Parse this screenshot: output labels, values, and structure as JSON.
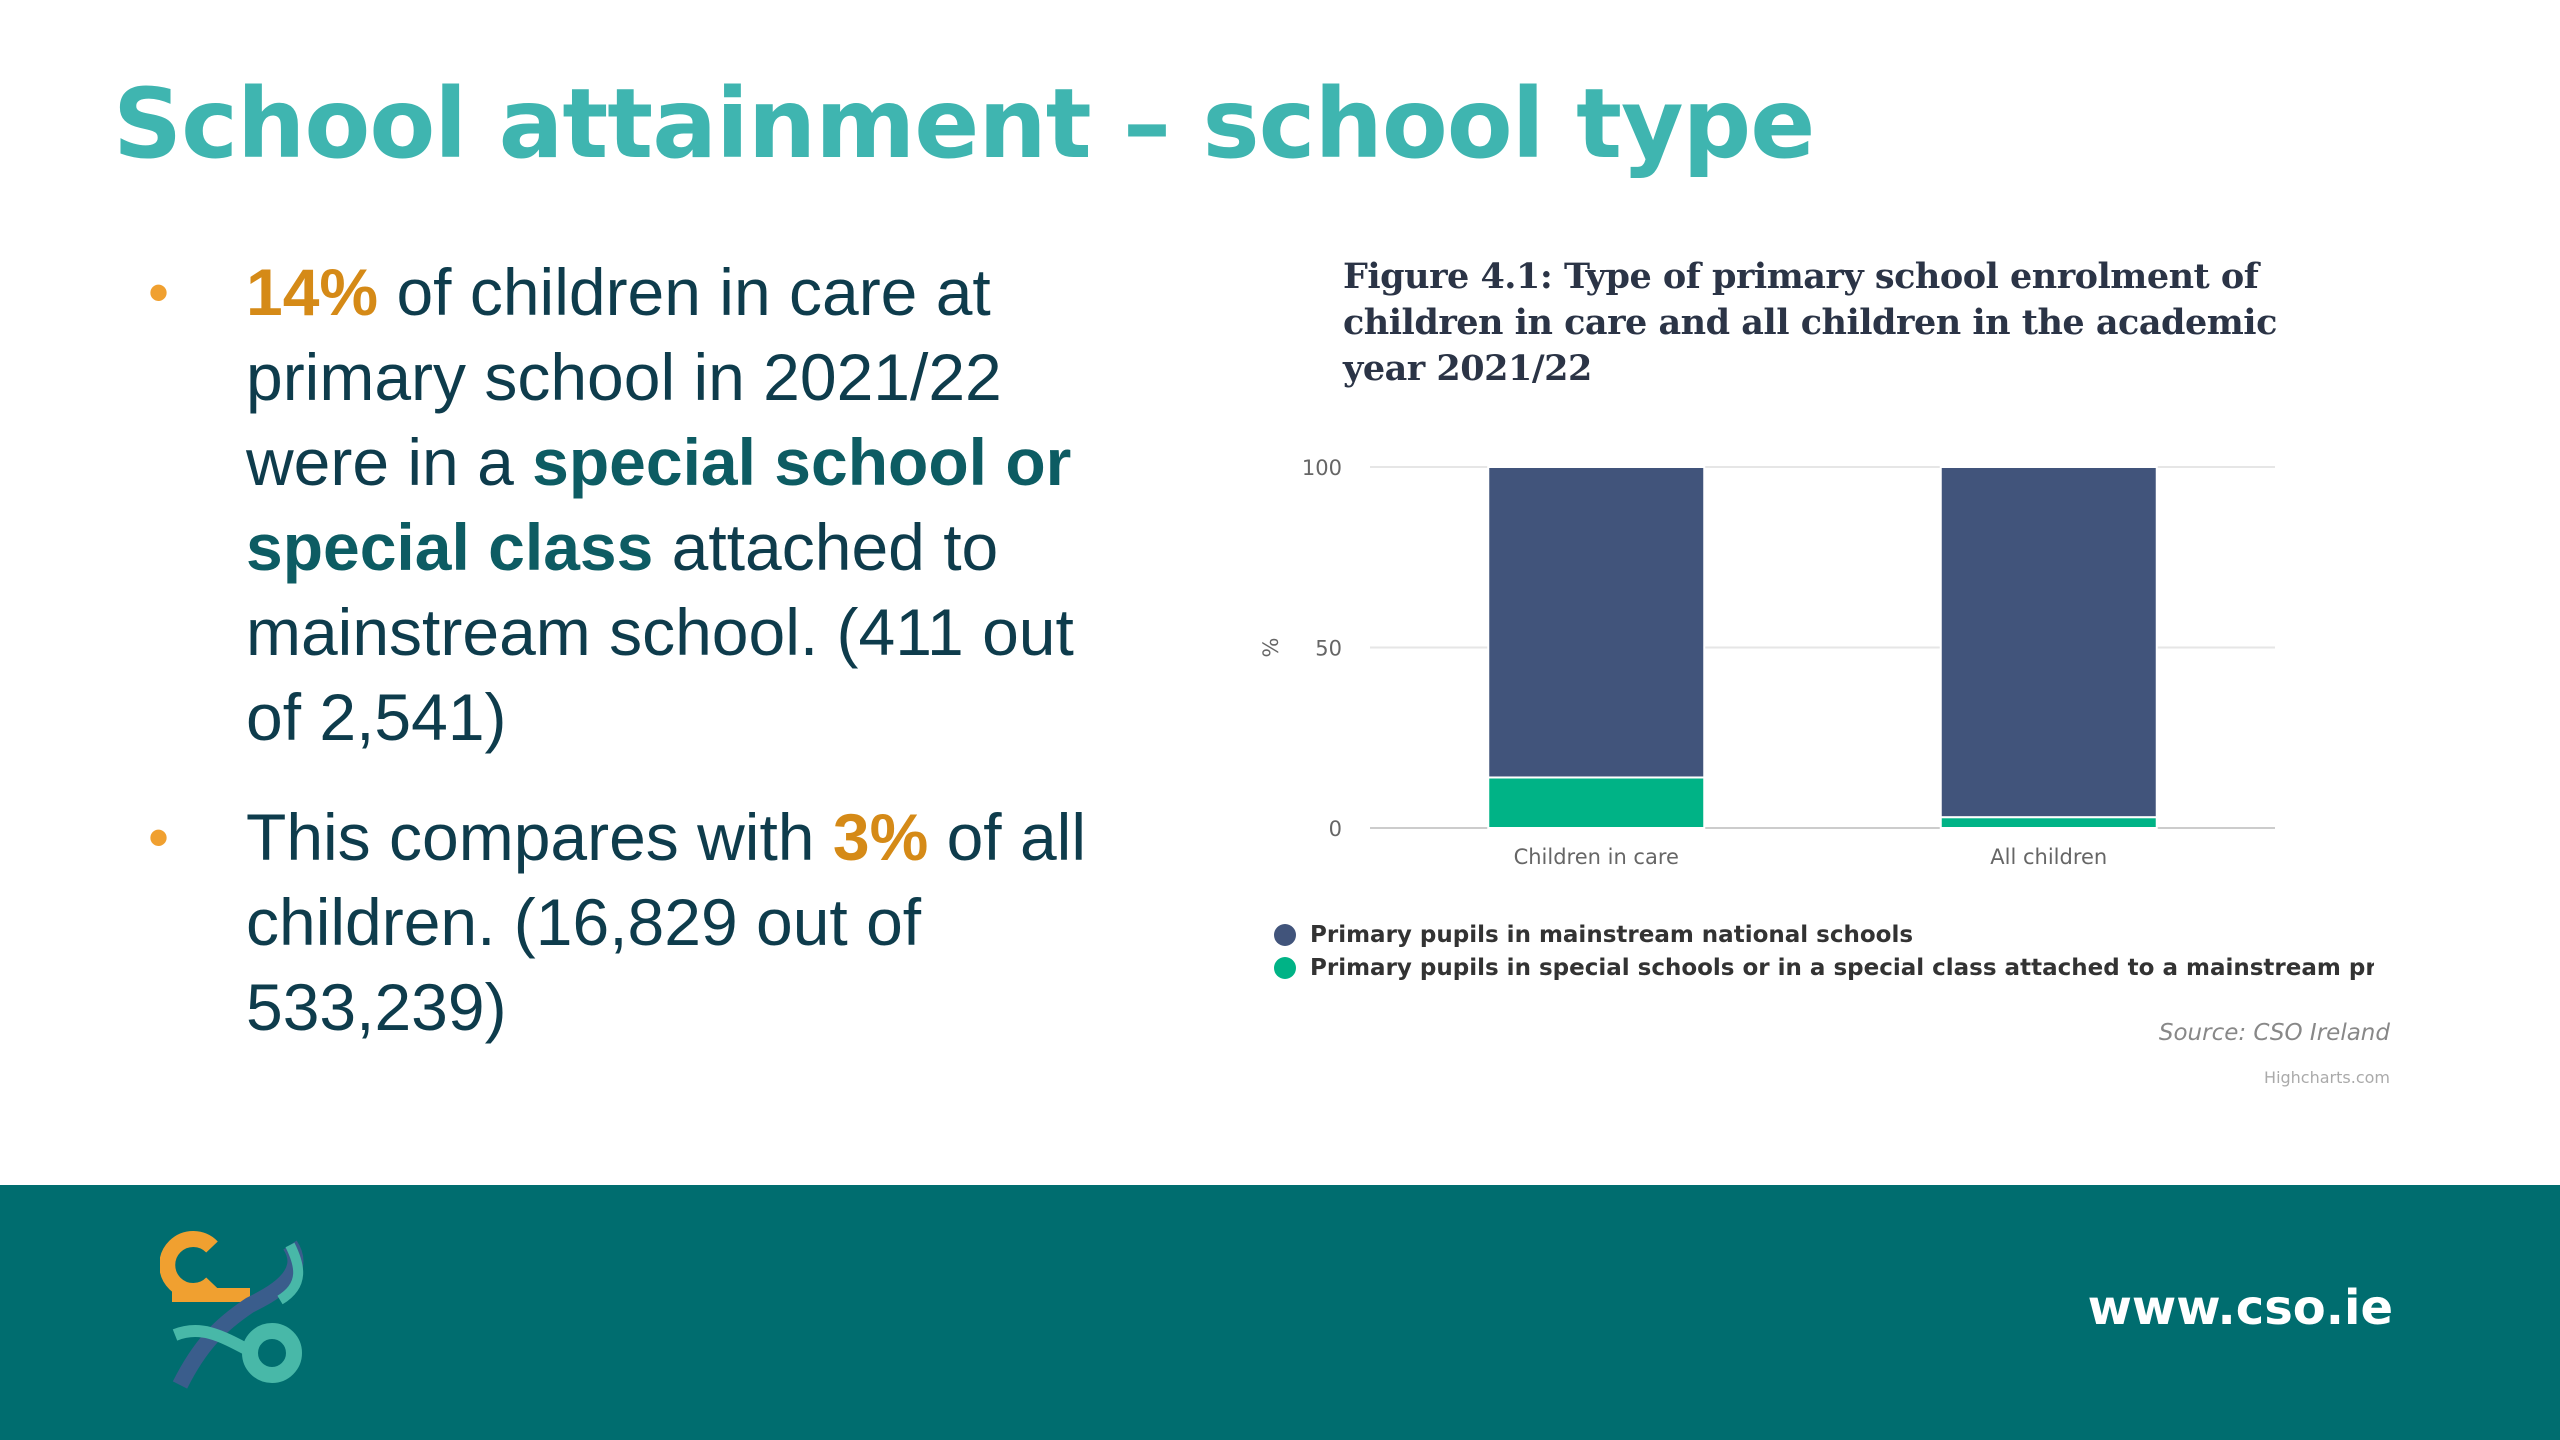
{
  "slide": {
    "title": "School attainment – school type"
  },
  "bullets": [
    {
      "lead": "14%",
      "t1": " of children in care at primary school in 2021/22 were in a ",
      "emph": "special school or special class",
      "t2": " attached to mainstream school. (411 out of 2,541)"
    },
    {
      "t1": "This compares with ",
      "lead": "3%",
      "t2": " of all children. (16,829 out of 533,239)"
    }
  ],
  "bullet_marker": "•",
  "chart_data": {
    "type": "bar",
    "stacked": true,
    "title": "Figure 4.1: Type of primary school enrolment of children in care and all children in the academic year 2021/22",
    "ylabel": "%",
    "ylim": [
      0,
      100
    ],
    "yticks": [
      0,
      50,
      100
    ],
    "grid": true,
    "legend_position": "bottom-left",
    "categories": [
      "Children in care",
      "All children"
    ],
    "series": [
      {
        "name": "Primary pupils in special schools or in a special class attached to a mainstream primary school",
        "values": [
          14,
          3
        ],
        "color": "#00b386"
      },
      {
        "name": "Primary pupils in mainstream national schools",
        "values": [
          86,
          97
        ],
        "color": "#41547b"
      }
    ],
    "legend_visible": [
      "Primary pupils in mainstream national schools",
      "Primary pupils in special schools or in a special class attached to a mainstream primary s"
    ],
    "source": "Source: CSO Ireland",
    "credits": "Highcharts.com"
  },
  "footer": {
    "url": "www.cso.ie",
    "background": "#006d6f",
    "logo_icon": "cso-logo-icon"
  }
}
